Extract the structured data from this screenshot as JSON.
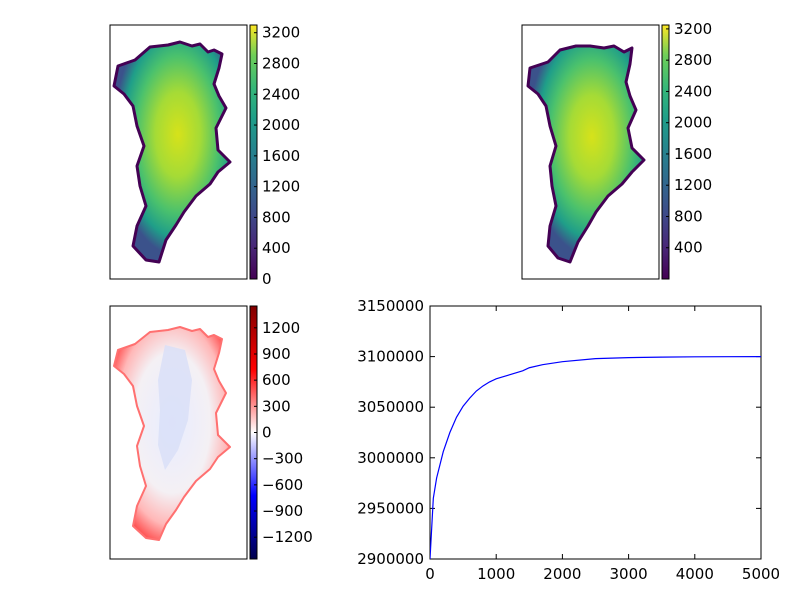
{
  "chart_data": [
    {
      "type": "heatmap",
      "panel": "top-left",
      "colormap": "viridis",
      "colorbar": {
        "range": [
          0,
          3300
        ],
        "ticks": [
          "0",
          "400",
          "800",
          "1200",
          "1600",
          "2000",
          "2400",
          "2800",
          "3200"
        ]
      },
      "axes_ticks": false
    },
    {
      "type": "heatmap",
      "panel": "top-right",
      "colormap": "viridis",
      "colorbar": {
        "range": [
          0,
          3250
        ],
        "ticks": [
          "400",
          "800",
          "1200",
          "1600",
          "2000",
          "2400",
          "2800",
          "3200"
        ]
      },
      "axes_ticks": false
    },
    {
      "type": "heatmap",
      "panel": "bottom-left",
      "colormap": "seismic",
      "colorbar": {
        "range": [
          -1450,
          1450
        ],
        "ticks": [
          "1200",
          "900",
          "600",
          "300",
          "0",
          "−300",
          "−600",
          "−900",
          "−1200"
        ]
      },
      "axes_ticks": false
    },
    {
      "type": "line",
      "panel": "bottom-right",
      "xlim": [
        0,
        5000
      ],
      "ylim": [
        2900000,
        3150000
      ],
      "xticks": [
        "0",
        "1000",
        "2000",
        "3000",
        "4000",
        "5000"
      ],
      "yticks": [
        "2900000",
        "2950000",
        "3000000",
        "3050000",
        "3100000",
        "3150000"
      ],
      "series": [
        {
          "color": "#0000ff",
          "x": [
            0,
            50,
            100,
            200,
            300,
            400,
            500,
            600,
            700,
            800,
            900,
            1000,
            1100,
            1200,
            1300,
            1400,
            1500,
            1700,
            2000,
            2500,
            3000,
            3500,
            4000,
            4500,
            5000
          ],
          "y": [
            2900000,
            2960000,
            2980000,
            3006000,
            3025000,
            3040000,
            3051000,
            3059000,
            3066000,
            3071000,
            3075000,
            3078000,
            3080000,
            3082000,
            3084000,
            3086000,
            3089000,
            3092000,
            3095000,
            3098000,
            3099000,
            3099500,
            3099800,
            3099900,
            3100000
          ]
        }
      ]
    }
  ]
}
